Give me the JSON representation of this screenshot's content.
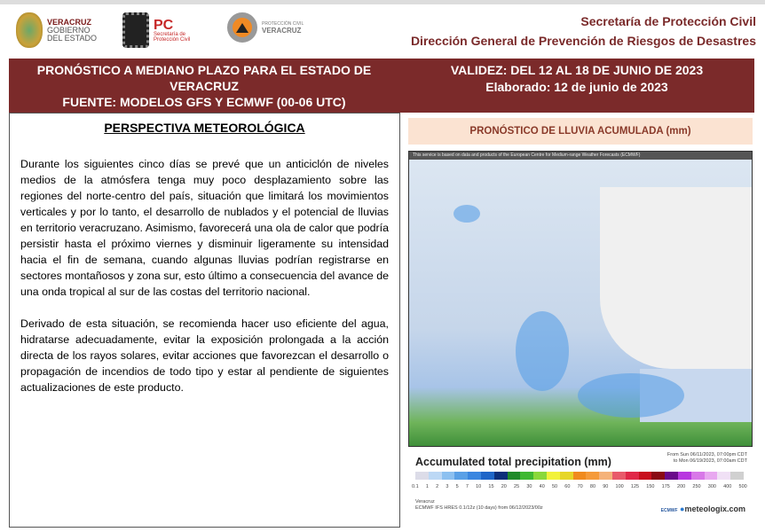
{
  "header": {
    "logo1": {
      "line1": "VERACRUZ",
      "line2": "GOBIERNO",
      "line3": "DEL ESTADO"
    },
    "logo2": {
      "title": "PC",
      "line1": "Secretaría de",
      "line2": "Protección Civil"
    },
    "logo3": {
      "line1": "PROTECCIÓN CIVIL",
      "line2": "VERACRUZ"
    },
    "org1": "Secretaría de Protección Civil",
    "org2": "Dirección General de Prevención de Riesgos de Desastres"
  },
  "band": {
    "title": "PRONÓSTICO A MEDIANO PLAZO PARA EL ESTADO DE VERACRUZ",
    "source": "FUENTE: MODELOS GFS Y ECMWF (00-06 UTC)",
    "validity": "VALIDEZ: DEL 12 AL 18 DE JUNIO DE 2023",
    "prepared": "Elaborado: 12 de junio de 2023"
  },
  "perspective": {
    "title": "PERSPECTIVA METEOROLÓGICA",
    "p1": "Durante los siguientes cinco días se prevé que un anticiclón de niveles medios de la atmósfera tenga muy poco desplazamiento sobre las regiones del norte-centro del país, situación que limitará los movimientos verticales y por lo tanto, el desarrollo de nublados y el potencial de lluvias en territorio veracruzano. Asimismo, favorecerá una ola de calor que podría persistir hasta el próximo viernes y disminuir ligeramente su intensidad hacia el fin de semana, cuando algunas lluvias podrían registrarse en sectores montañosos y zona sur, esto último a consecuencia del avance de una onda tropical al sur de las costas del territorio nacional.",
    "p2": "Derivado de esta situación, se recomienda hacer uso eficiente del agua, hidratarse adecuadamente, evitar la exposición prolongada a la acción directa de los rayos solares, evitar acciones que favorezcan el desarrollo o propagación de incendios de todo tipo y estar al pendiente de siguientes actualizaciones de este producto."
  },
  "rain": {
    "title": "PRONÓSTICO DE LLUVIA ACUMULADA (mm)",
    "map_caption": "This service is based on data and products of the European Centre for Medium-range Weather Forecasts (ECMWF)",
    "legend_title": "Accumulated total precipitation (mm)",
    "date_from": "From Sun 06/11/2023, 07:00pm CDT",
    "date_to": "to Mon 06/19/2023, 07:00am CDT",
    "ticks": [
      "0.1",
      "1",
      "2",
      "3",
      "5",
      "7",
      "10",
      "15",
      "20",
      "25",
      "30",
      "40",
      "50",
      "60",
      "70",
      "80",
      "90",
      "100",
      "125",
      "150",
      "175",
      "200",
      "250",
      "300",
      "400",
      "500"
    ],
    "colors": [
      "#dcdce8",
      "#bcd8f5",
      "#8cc0f0",
      "#5aa0e6",
      "#3a86e0",
      "#1f66c8",
      "#0c2f7a",
      "#1f8a2a",
      "#3fb832",
      "#8ad83a",
      "#f2f23a",
      "#e6d628",
      "#f08a1e",
      "#f59a3a",
      "#f5b27a",
      "#e85a6a",
      "#e02848",
      "#c8101e",
      "#8a0a14",
      "#6a0a8a",
      "#b838e0",
      "#d878e8",
      "#e8a8f0",
      "#f0e0f5",
      "#d0d0d0"
    ],
    "region": "Veracruz",
    "model": "ECMWF IFS HRES 0.1/12z (10 days) from 06/12/2023/00z",
    "brand": "meteologix.com",
    "brand_small": "ECMWF"
  }
}
